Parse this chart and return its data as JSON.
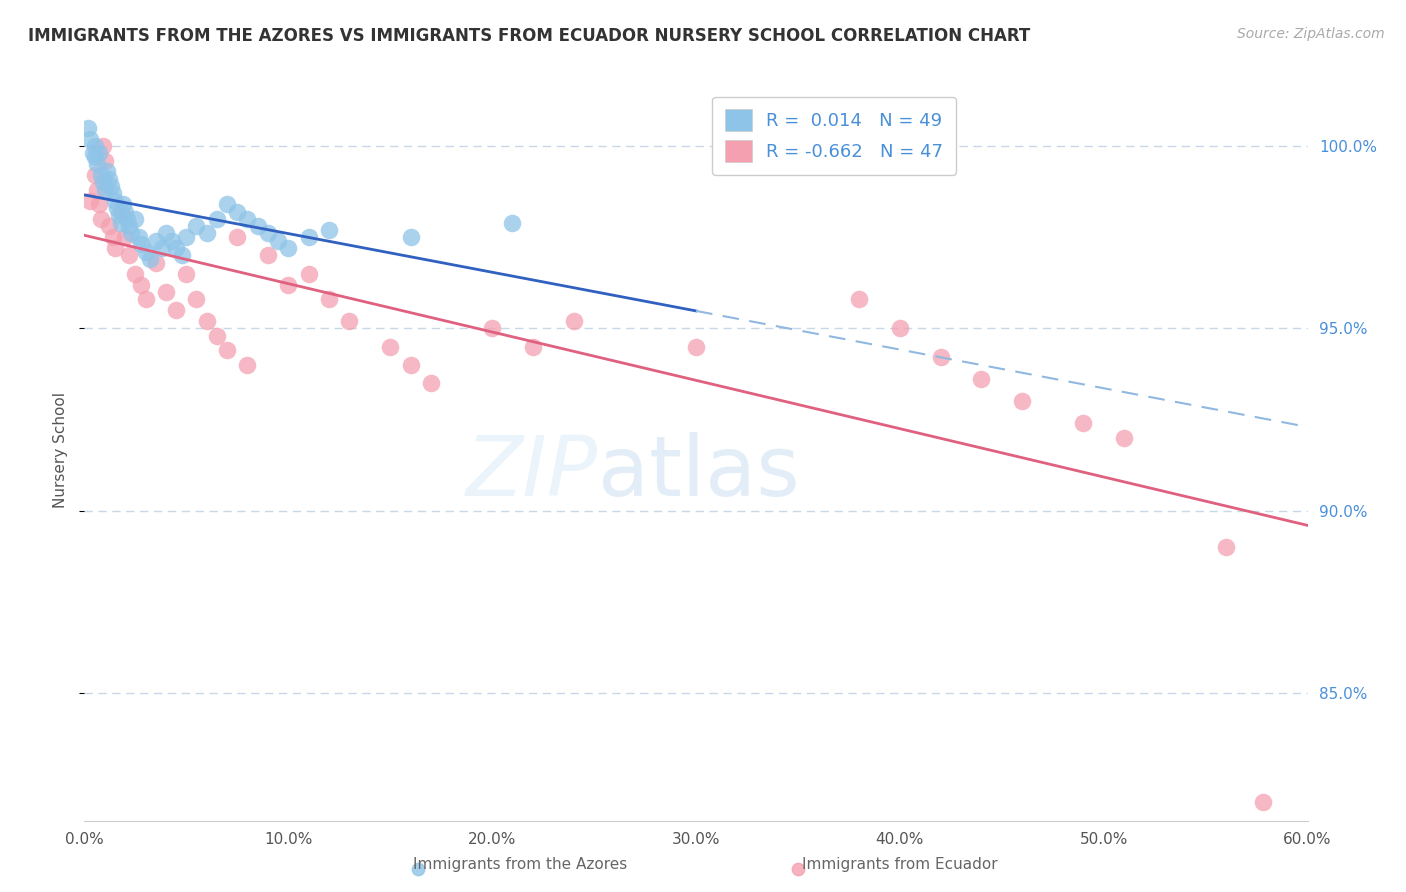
{
  "title": "IMMIGRANTS FROM THE AZORES VS IMMIGRANTS FROM ECUADOR NURSERY SCHOOL CORRELATION CHART",
  "source": "Source: ZipAtlas.com",
  "ylabel": "Nursery School",
  "xlim": [
    0.0,
    0.6
  ],
  "ylim": [
    0.815,
    1.018
  ],
  "xtick_labels": [
    "0.0%",
    "10.0%",
    "20.0%",
    "30.0%",
    "40.0%",
    "50.0%",
    "60.0%"
  ],
  "xtick_values": [
    0.0,
    0.1,
    0.2,
    0.3,
    0.4,
    0.5,
    0.6
  ],
  "ytick_labels": [
    "85.0%",
    "90.0%",
    "95.0%",
    "100.0%"
  ],
  "ytick_values": [
    0.85,
    0.9,
    0.95,
    1.0
  ],
  "legend_entry1": "R =  0.014   N = 49",
  "legend_entry2": "R = -0.662   N = 47",
  "color_azores": "#8EC4E8",
  "color_ecuador": "#F4A0B0",
  "line_color_azores": "#3060c0",
  "line_color_ecuador": "#e06080",
  "background_color": "#ffffff",
  "grid_color": "#c8d8e8",
  "azores_x": [
    0.002,
    0.003,
    0.004,
    0.005,
    0.005,
    0.006,
    0.007,
    0.008,
    0.009,
    0.01,
    0.011,
    0.012,
    0.013,
    0.014,
    0.015,
    0.016,
    0.017,
    0.018,
    0.019,
    0.02,
    0.021,
    0.022,
    0.023,
    0.025,
    0.027,
    0.028,
    0.03,
    0.032,
    0.035,
    0.038,
    0.04,
    0.043,
    0.045,
    0.048,
    0.05,
    0.055,
    0.06,
    0.065,
    0.07,
    0.075,
    0.08,
    0.085,
    0.09,
    0.095,
    0.1,
    0.11,
    0.12,
    0.16,
    0.21
  ],
  "azores_y": [
    1.005,
    1.002,
    0.998,
    1.0,
    0.997,
    0.995,
    0.998,
    0.992,
    0.99,
    0.988,
    0.993,
    0.991,
    0.989,
    0.987,
    0.985,
    0.983,
    0.981,
    0.979,
    0.984,
    0.982,
    0.98,
    0.978,
    0.976,
    0.98,
    0.975,
    0.973,
    0.971,
    0.969,
    0.974,
    0.972,
    0.976,
    0.974,
    0.972,
    0.97,
    0.975,
    0.978,
    0.976,
    0.98,
    0.984,
    0.982,
    0.98,
    0.978,
    0.976,
    0.974,
    0.972,
    0.975,
    0.977,
    0.975,
    0.979
  ],
  "ecuador_x": [
    0.003,
    0.005,
    0.006,
    0.007,
    0.008,
    0.009,
    0.01,
    0.012,
    0.014,
    0.015,
    0.018,
    0.02,
    0.022,
    0.025,
    0.028,
    0.03,
    0.035,
    0.04,
    0.045,
    0.05,
    0.055,
    0.06,
    0.065,
    0.07,
    0.075,
    0.08,
    0.09,
    0.1,
    0.11,
    0.12,
    0.13,
    0.15,
    0.16,
    0.17,
    0.2,
    0.22,
    0.24,
    0.3,
    0.38,
    0.4,
    0.42,
    0.44,
    0.46,
    0.49,
    0.51,
    0.56,
    0.578
  ],
  "ecuador_y": [
    0.985,
    0.992,
    0.988,
    0.984,
    0.98,
    1.0,
    0.996,
    0.978,
    0.975,
    0.972,
    0.982,
    0.975,
    0.97,
    0.965,
    0.962,
    0.958,
    0.968,
    0.96,
    0.955,
    0.965,
    0.958,
    0.952,
    0.948,
    0.944,
    0.975,
    0.94,
    0.97,
    0.962,
    0.965,
    0.958,
    0.952,
    0.945,
    0.94,
    0.935,
    0.95,
    0.945,
    0.952,
    0.945,
    0.958,
    0.95,
    0.942,
    0.936,
    0.93,
    0.924,
    0.92,
    0.89,
    0.82
  ]
}
